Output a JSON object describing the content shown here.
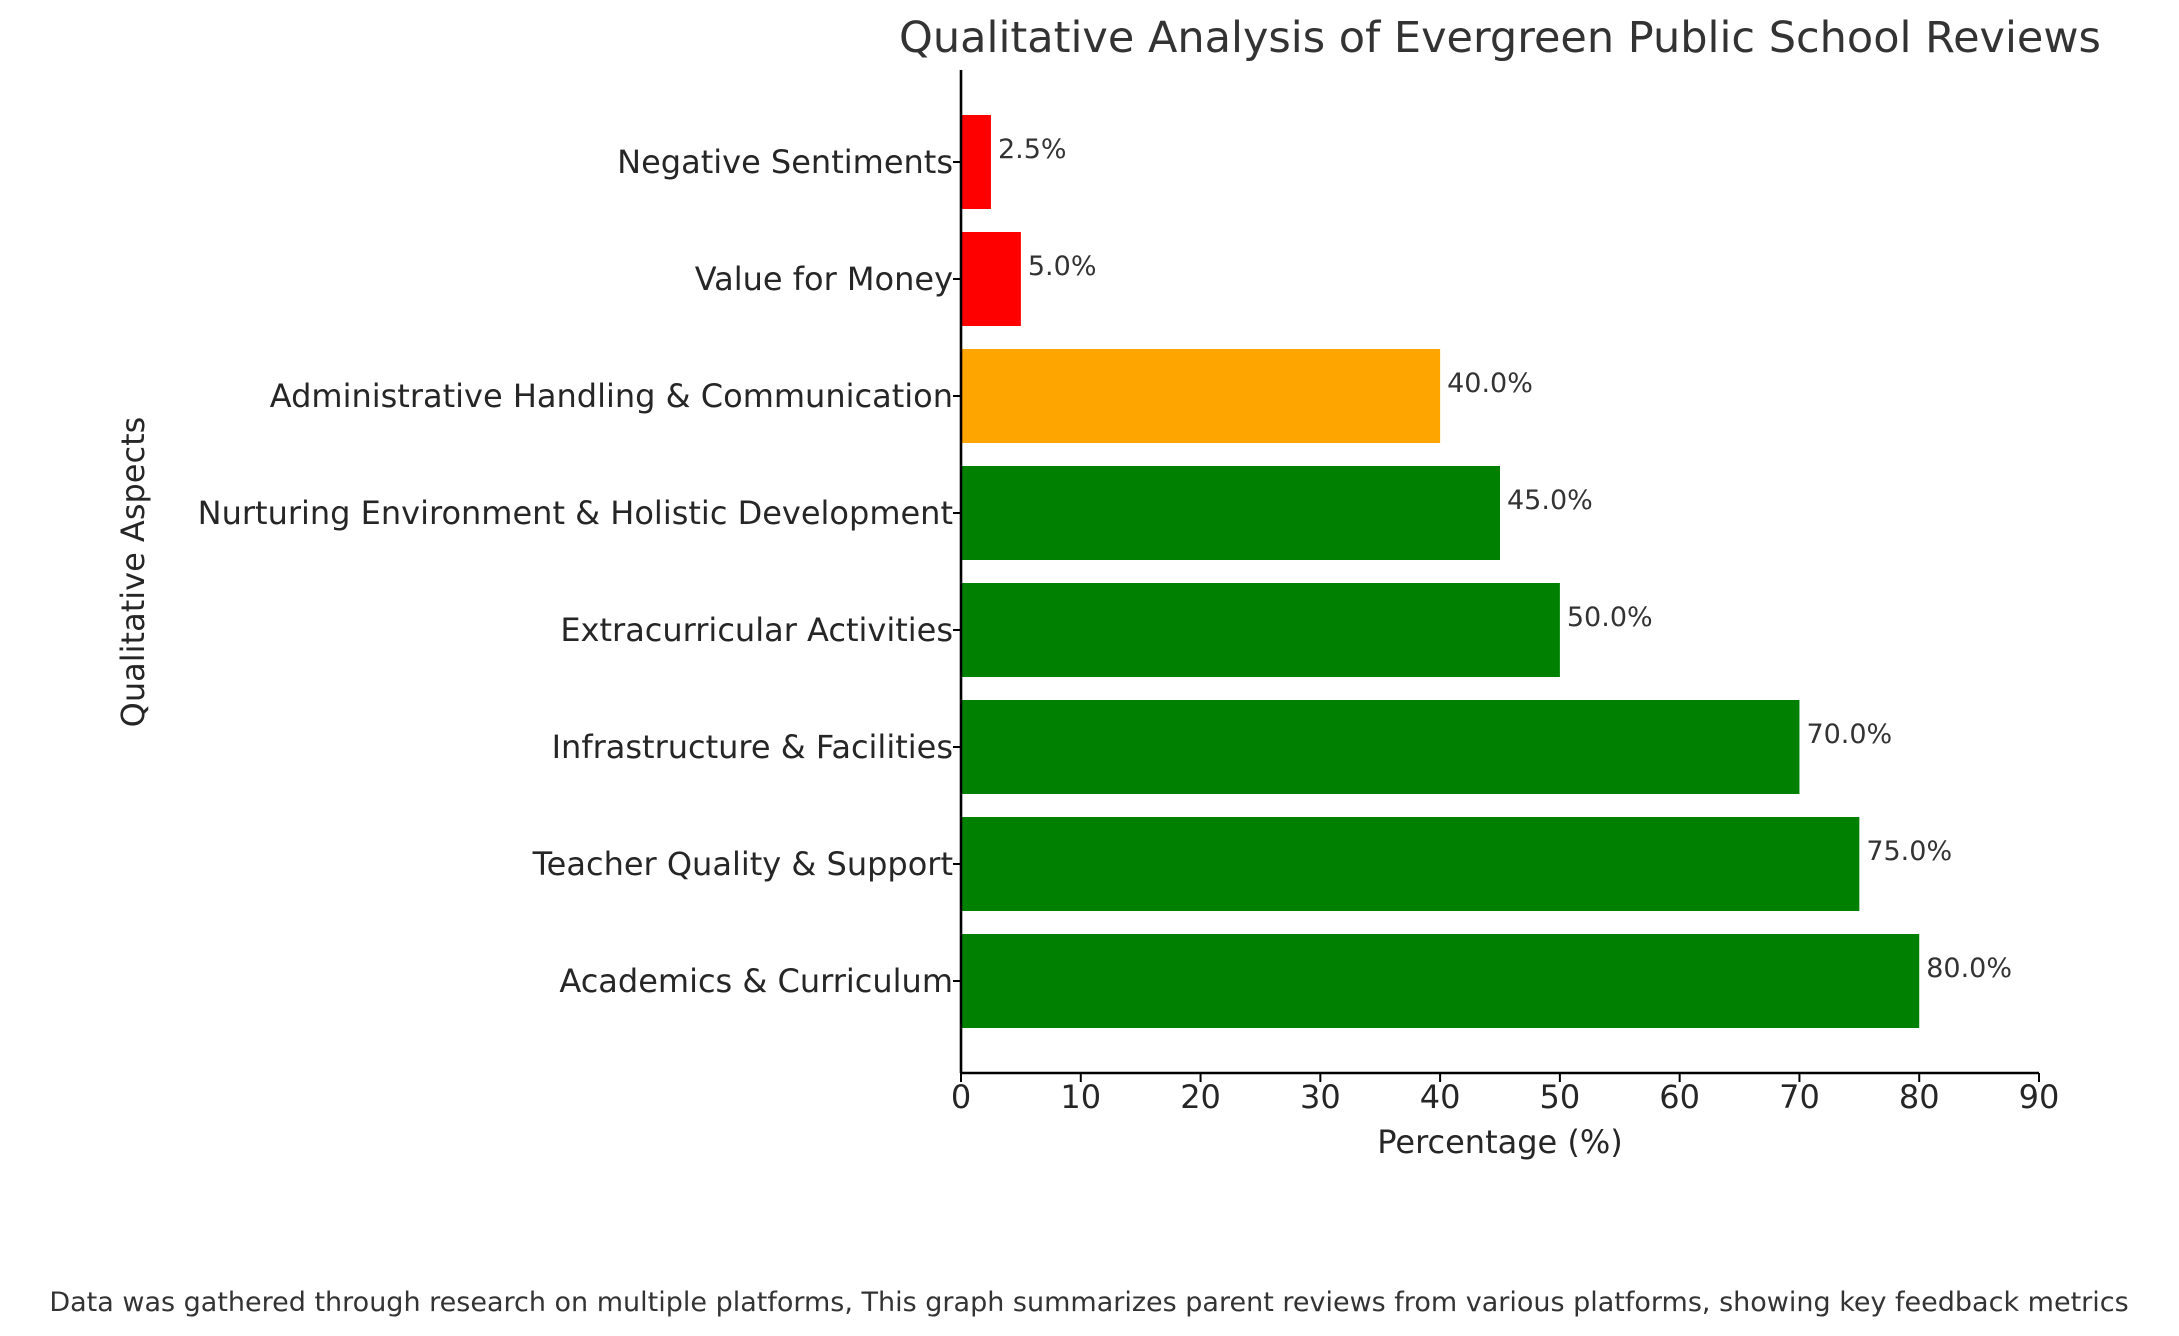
{
  "chart_data": {
    "type": "bar",
    "orientation": "horizontal",
    "title": "Qualitative Analysis of Evergreen Public School Reviews",
    "xlabel": "Percentage (%)",
    "ylabel": "Qualitative Aspects",
    "xlim": [
      0,
      90
    ],
    "xticks": [
      0,
      10,
      20,
      30,
      40,
      50,
      60,
      70,
      80,
      90
    ],
    "grid": false,
    "categories": [
      "Academics & Curriculum",
      "Teacher Quality & Support",
      "Infrastructure & Facilities",
      "Extracurricular Activities",
      "Nurturing Environment & Holistic Development",
      "Administrative Handling & Communication",
      "Value for Money",
      "Negative Sentiments"
    ],
    "values": [
      80,
      75,
      70,
      50,
      45,
      40,
      5,
      2.5
    ],
    "data_labels": [
      "80.0%",
      "75.0%",
      "70.0%",
      "50.0%",
      "45.0%",
      "40.0%",
      "5.0%",
      "2.5%"
    ],
    "colors": [
      "#008000",
      "#008000",
      "#008000",
      "#008000",
      "#008000",
      "#ffa500",
      "#ff0000",
      "#ff0000"
    ],
    "footnote": "Data was gathered through research on multiple platforms, This graph summarizes parent reviews from various platforms, showing key feedback metrics"
  }
}
